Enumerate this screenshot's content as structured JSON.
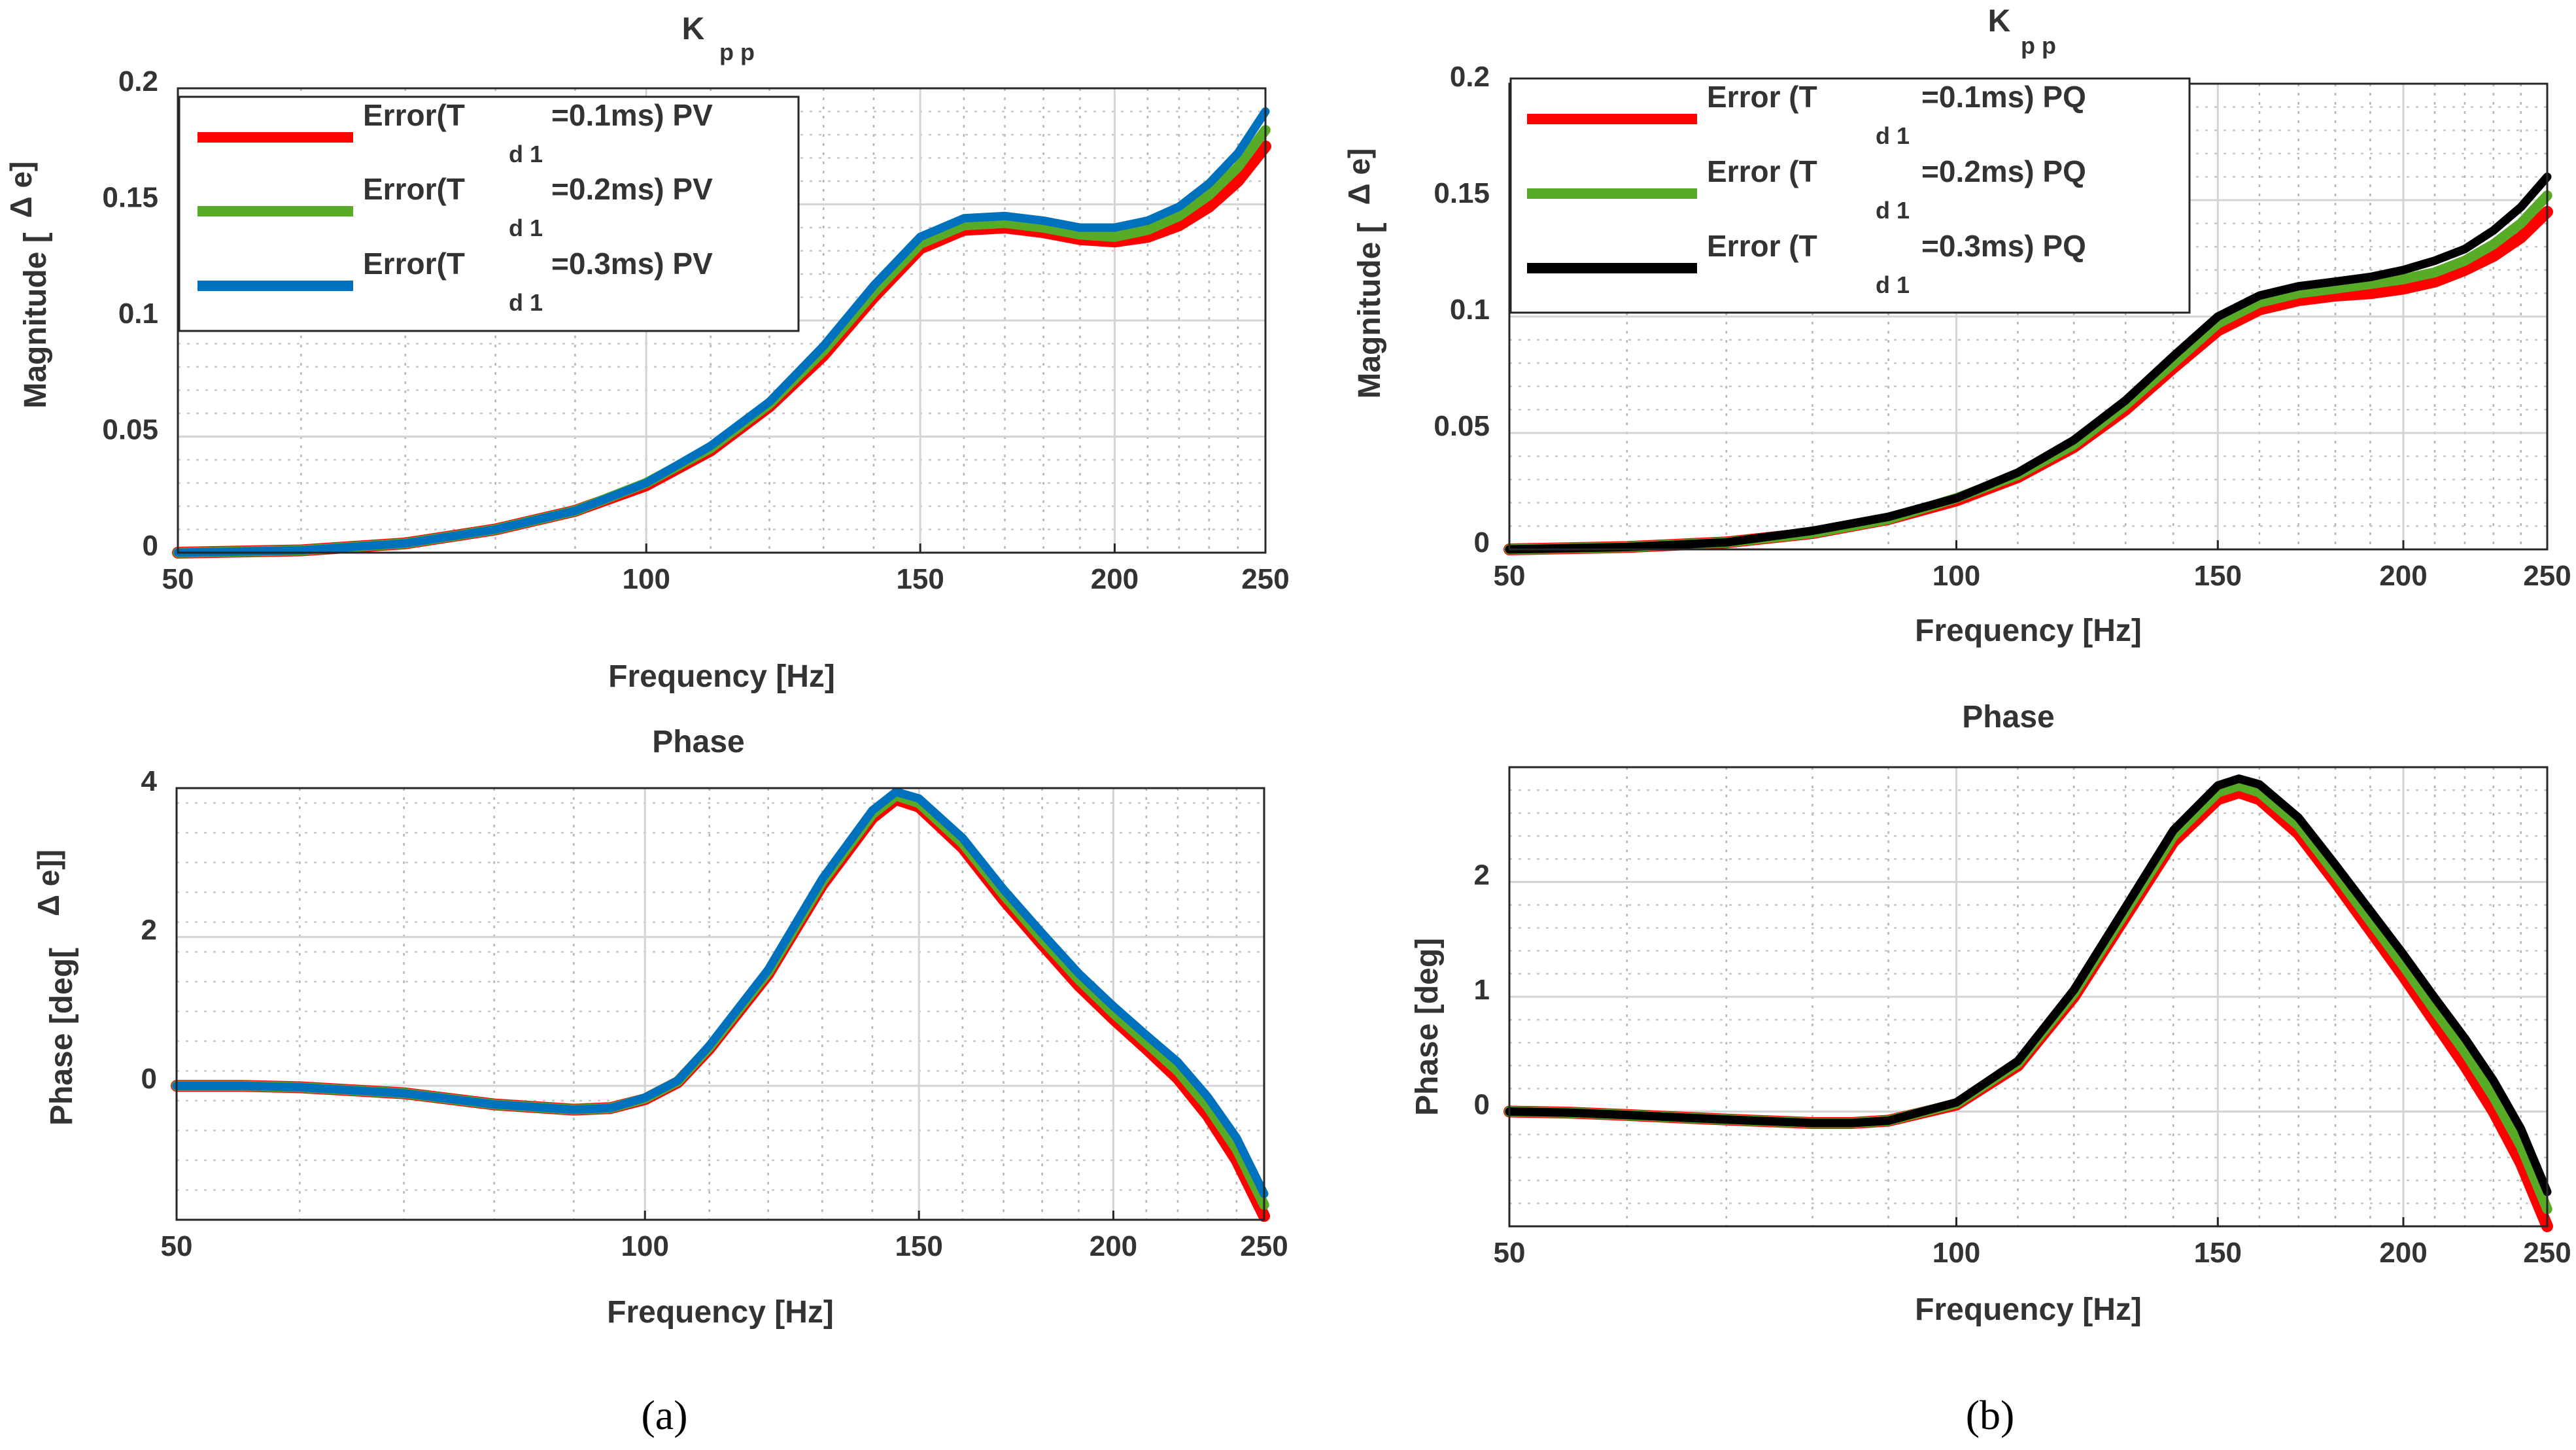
{
  "panel_labels": [
    "(a)",
    "(b)"
  ],
  "chart_data": [
    {
      "panel": "a",
      "type": "line",
      "subplot": "magnitude",
      "title_main": "K",
      "title_sub": "p p",
      "xlabel": "Frequency [Hz]",
      "ylabel": "Magnitude [",
      "ylabel_extra": "Δ e]",
      "xscale": "log",
      "xlim": [
        50,
        250
      ],
      "ylim": [
        0,
        0.2
      ],
      "xticks": [
        50,
        100,
        150,
        200,
        250
      ],
      "xtick_labels": [
        "50",
        "100",
        "150",
        "200",
        "250"
      ],
      "yticks": [
        0,
        0.05,
        0.1,
        0.15,
        0.2
      ],
      "ytick_labels": [
        "0",
        "0.05",
        "0.1",
        "0.15",
        "0.2"
      ],
      "grid": true,
      "legend_position": "top-left",
      "x": [
        50,
        60,
        70,
        80,
        90,
        100,
        110,
        120,
        130,
        140,
        150,
        160,
        170,
        180,
        190,
        200,
        210,
        220,
        230,
        240,
        250
      ],
      "series": [
        {
          "name": "Error(T",
          "sub": "d 1",
          "suffix": "=0.1ms) PV",
          "color": "#ff0000",
          "values": [
            0,
            0.001,
            0.004,
            0.01,
            0.018,
            0.029,
            0.044,
            0.063,
            0.085,
            0.11,
            0.131,
            0.139,
            0.14,
            0.138,
            0.135,
            0.134,
            0.136,
            0.141,
            0.149,
            0.16,
            0.175
          ]
        },
        {
          "name": "Error(T",
          "sub": "d 1",
          "suffix": "=0.2ms) PV",
          "color": "#58ab27",
          "values": [
            0,
            0.001,
            0.004,
            0.01,
            0.018,
            0.03,
            0.045,
            0.064,
            0.087,
            0.112,
            0.133,
            0.141,
            0.142,
            0.14,
            0.137,
            0.136,
            0.139,
            0.145,
            0.154,
            0.166,
            0.182
          ]
        },
        {
          "name": "Error(T",
          "sub": "d 1",
          "suffix": "=0.3ms) PV",
          "color": "#0072bd",
          "values": [
            0,
            0.001,
            0.004,
            0.01,
            0.018,
            0.03,
            0.046,
            0.065,
            0.089,
            0.115,
            0.136,
            0.144,
            0.145,
            0.143,
            0.14,
            0.14,
            0.143,
            0.149,
            0.159,
            0.172,
            0.19
          ]
        }
      ]
    },
    {
      "panel": "a",
      "type": "line",
      "subplot": "phase",
      "title_main": "Phase",
      "xlabel": "Frequency [Hz]",
      "ylabel": "Phase [deg[",
      "ylabel_extra": "Δ e]]",
      "xscale": "log",
      "xlim": [
        50,
        250
      ],
      "ylim": [
        -1.8,
        4
      ],
      "xticks": [
        50,
        100,
        150,
        200,
        250
      ],
      "xtick_labels": [
        "50",
        "100",
        "150",
        "200",
        "250"
      ],
      "yticks": [
        0,
        2,
        4
      ],
      "ytick_labels": [
        "0",
        "2",
        "4"
      ],
      "grid": true,
      "x": [
        50,
        55,
        60,
        70,
        80,
        90,
        95,
        100,
        105,
        110,
        120,
        130,
        140,
        145,
        150,
        160,
        170,
        180,
        190,
        200,
        210,
        220,
        230,
        240,
        250
      ],
      "series": [
        {
          "name": "Error(T d 1 =0.1ms) PV",
          "color": "#ff0000",
          "values": [
            0,
            0,
            -0.02,
            -0.1,
            -0.25,
            -0.32,
            -0.3,
            -0.18,
            0.05,
            0.5,
            1.5,
            2.7,
            3.6,
            3.85,
            3.75,
            3.2,
            2.5,
            1.9,
            1.35,
            0.9,
            0.5,
            0.1,
            -0.4,
            -1.0,
            -1.75
          ]
        },
        {
          "name": "Error(T d 1 =0.2ms) PV",
          "color": "#58ab27",
          "values": [
            0,
            0,
            -0.02,
            -0.1,
            -0.25,
            -0.32,
            -0.3,
            -0.17,
            0.06,
            0.52,
            1.53,
            2.74,
            3.65,
            3.9,
            3.8,
            3.26,
            2.57,
            1.97,
            1.43,
            0.98,
            0.58,
            0.2,
            -0.28,
            -0.85,
            -1.6
          ]
        },
        {
          "name": "Error(T d 1 =0.3ms) PV",
          "color": "#0072bd",
          "values": [
            0,
            0,
            -0.02,
            -0.1,
            -0.25,
            -0.32,
            -0.3,
            -0.16,
            0.07,
            0.54,
            1.56,
            2.78,
            3.7,
            3.95,
            3.86,
            3.33,
            2.64,
            2.05,
            1.51,
            1.07,
            0.68,
            0.32,
            -0.15,
            -0.7,
            -1.45
          ]
        }
      ]
    },
    {
      "panel": "b",
      "type": "line",
      "subplot": "magnitude",
      "title_main": "K",
      "title_sub": "p p",
      "xlabel": "Frequency [Hz]",
      "ylabel": "Magnitude [",
      "ylabel_extra": "Δ e]",
      "xscale": "log",
      "xlim": [
        50,
        250
      ],
      "ylim": [
        0,
        0.2
      ],
      "xticks": [
        50,
        100,
        150,
        200,
        250
      ],
      "xtick_labels": [
        "50",
        "100",
        "150",
        "200",
        "250"
      ],
      "yticks": [
        0,
        0.05,
        0.1,
        0.15,
        0.2
      ],
      "ytick_labels": [
        "0",
        "0.05",
        "0.1",
        "0.15",
        "0.2"
      ],
      "grid": true,
      "legend_position": "top-left",
      "x": [
        50,
        60,
        70,
        80,
        90,
        100,
        110,
        120,
        130,
        140,
        150,
        160,
        170,
        180,
        190,
        200,
        210,
        220,
        230,
        240,
        250
      ],
      "series": [
        {
          "name": "Error (T",
          "sub": "d 1",
          "suffix": "=0.1ms) PQ",
          "color": "#ff0000",
          "values": [
            0,
            0.001,
            0.003,
            0.007,
            0.013,
            0.021,
            0.031,
            0.044,
            0.06,
            0.078,
            0.094,
            0.103,
            0.107,
            0.109,
            0.11,
            0.112,
            0.115,
            0.12,
            0.126,
            0.134,
            0.145
          ]
        },
        {
          "name": "Error (T",
          "sub": "d 1",
          "suffix": "=0.2ms) PQ",
          "color": "#58ab27",
          "values": [
            0,
            0.001,
            0.003,
            0.007,
            0.013,
            0.022,
            0.032,
            0.045,
            0.062,
            0.08,
            0.097,
            0.106,
            0.11,
            0.112,
            0.114,
            0.116,
            0.119,
            0.124,
            0.131,
            0.14,
            0.152
          ]
        },
        {
          "name": "Error (T",
          "sub": "d 1",
          "suffix": "=0.3ms) PQ",
          "color": "#000000",
          "values": [
            0,
            0.001,
            0.003,
            0.008,
            0.014,
            0.022,
            0.033,
            0.047,
            0.064,
            0.083,
            0.1,
            0.109,
            0.113,
            0.115,
            0.117,
            0.12,
            0.124,
            0.129,
            0.137,
            0.147,
            0.16
          ]
        }
      ]
    },
    {
      "panel": "b",
      "type": "line",
      "subplot": "phase",
      "title_main": "Phase",
      "xlabel": "Frequency [Hz]",
      "ylabel": "Phase [deg]",
      "xscale": "log",
      "xlim": [
        50,
        250
      ],
      "ylim": [
        -1,
        3
      ],
      "xticks": [
        50,
        100,
        150,
        200,
        250
      ],
      "xtick_labels": [
        "50",
        "100",
        "150",
        "200",
        "250"
      ],
      "yticks": [
        0,
        1,
        2
      ],
      "ytick_labels": [
        "0",
        "1",
        "2"
      ],
      "grid": true,
      "x": [
        50,
        55,
        60,
        70,
        80,
        85,
        90,
        100,
        110,
        120,
        130,
        140,
        150,
        155,
        160,
        170,
        180,
        190,
        200,
        210,
        220,
        230,
        240,
        250
      ],
      "series": [
        {
          "name": "Error (T d 1 =0.1ms) PQ",
          "color": "#ff0000",
          "values": [
            0,
            -0.01,
            -0.03,
            -0.07,
            -0.1,
            -0.1,
            -0.08,
            0.06,
            0.4,
            1.0,
            1.7,
            2.35,
            2.72,
            2.78,
            2.72,
            2.42,
            2.0,
            1.58,
            1.18,
            0.78,
            0.4,
            0.0,
            -0.45,
            -1.0
          ]
        },
        {
          "name": "Error (T d 1 =0.2ms) PQ",
          "color": "#58ab27",
          "values": [
            0,
            -0.01,
            -0.03,
            -0.07,
            -0.1,
            -0.1,
            -0.08,
            0.07,
            0.42,
            1.03,
            1.74,
            2.4,
            2.78,
            2.84,
            2.78,
            2.49,
            2.07,
            1.66,
            1.27,
            0.88,
            0.52,
            0.13,
            -0.3,
            -0.85
          ]
        },
        {
          "name": "Error (T d 1 =0.3ms) PQ",
          "color": "#000000",
          "values": [
            0,
            -0.01,
            -0.03,
            -0.07,
            -0.1,
            -0.1,
            -0.08,
            0.08,
            0.44,
            1.06,
            1.78,
            2.45,
            2.84,
            2.9,
            2.85,
            2.56,
            2.15,
            1.75,
            1.37,
            0.99,
            0.64,
            0.27,
            -0.15,
            -0.7
          ]
        }
      ]
    }
  ]
}
